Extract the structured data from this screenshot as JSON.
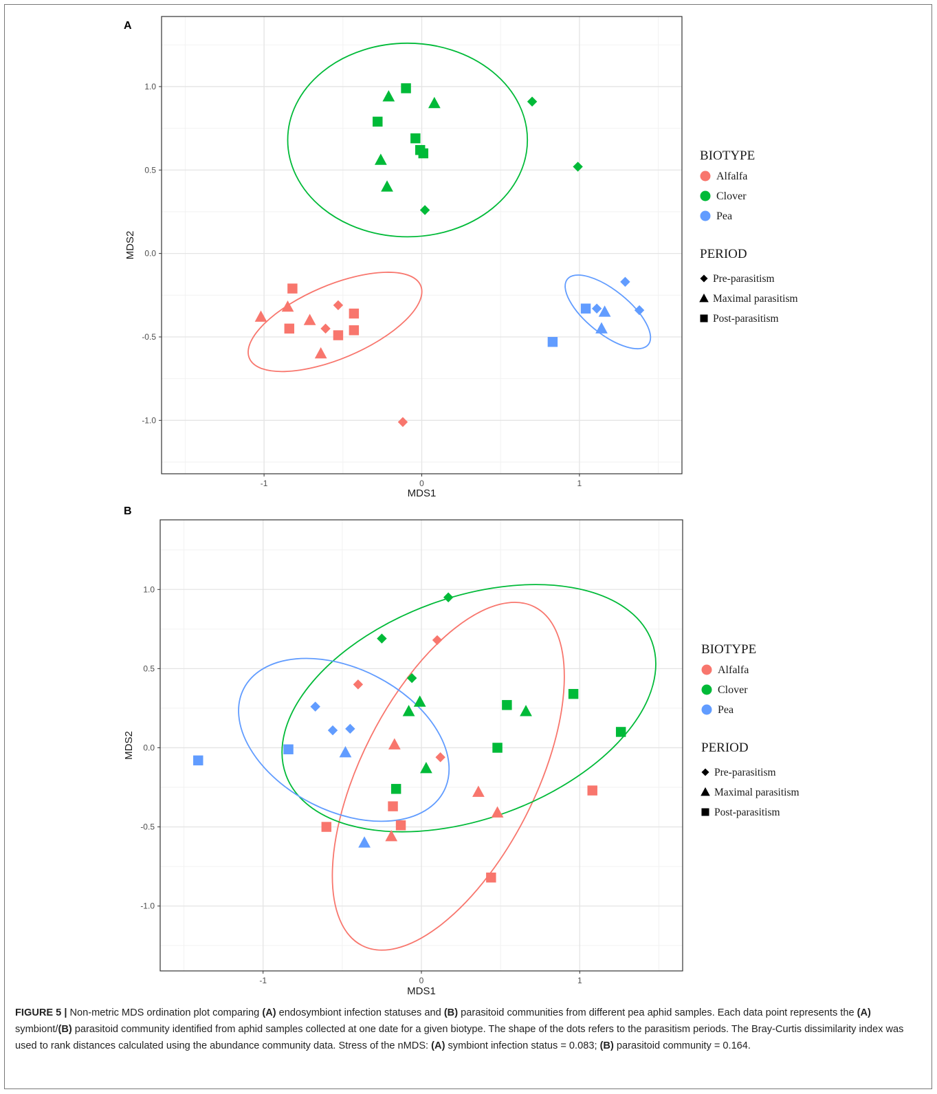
{
  "legend": {
    "biotype_title": "BIOTYPE",
    "biotypes": [
      {
        "name": "Alfalfa",
        "color": "#F8766D"
      },
      {
        "name": "Clover",
        "color": "#00BA38"
      },
      {
        "name": "Pea",
        "color": "#619CFF"
      }
    ],
    "period_title": "PERIOD",
    "periods": [
      {
        "name": "Pre-parasitism",
        "shape": "diamond"
      },
      {
        "name": "Maximal parasitism",
        "shape": "triangle"
      },
      {
        "name": "Post-parasitism",
        "shape": "square"
      }
    ]
  },
  "chart_data": [
    {
      "panel": "A",
      "type": "scatter",
      "xlabel": "MDS1",
      "ylabel": "MDS2",
      "xlim": [
        -1.65,
        1.65
      ],
      "ylim": [
        -1.32,
        1.42
      ],
      "xticks": [
        -1,
        0,
        1
      ],
      "yticks": [
        -1.0,
        -0.5,
        0.0,
        0.5,
        1.0
      ],
      "grid": true,
      "points": [
        {
          "biotype": "Alfalfa",
          "period": "Pre-parasitism",
          "x": -0.53,
          "y": -0.31
        },
        {
          "biotype": "Alfalfa",
          "period": "Pre-parasitism",
          "x": -0.61,
          "y": -0.45
        },
        {
          "biotype": "Alfalfa",
          "period": "Pre-parasitism",
          "x": -0.12,
          "y": -1.01
        },
        {
          "biotype": "Alfalfa",
          "period": "Maximal parasitism",
          "x": -1.02,
          "y": -0.38
        },
        {
          "biotype": "Alfalfa",
          "period": "Maximal parasitism",
          "x": -0.85,
          "y": -0.32
        },
        {
          "biotype": "Alfalfa",
          "period": "Maximal parasitism",
          "x": -0.71,
          "y": -0.4
        },
        {
          "biotype": "Alfalfa",
          "period": "Maximal parasitism",
          "x": -0.64,
          "y": -0.6
        },
        {
          "biotype": "Alfalfa",
          "period": "Post-parasitism",
          "x": -0.82,
          "y": -0.21
        },
        {
          "biotype": "Alfalfa",
          "period": "Post-parasitism",
          "x": -0.84,
          "y": -0.45
        },
        {
          "biotype": "Alfalfa",
          "period": "Post-parasitism",
          "x": -0.53,
          "y": -0.49
        },
        {
          "biotype": "Alfalfa",
          "period": "Post-parasitism",
          "x": -0.43,
          "y": -0.36
        },
        {
          "biotype": "Alfalfa",
          "period": "Post-parasitism",
          "x": -0.43,
          "y": -0.46
        },
        {
          "biotype": "Clover",
          "period": "Pre-parasitism",
          "x": 0.7,
          "y": 0.91
        },
        {
          "biotype": "Clover",
          "period": "Pre-parasitism",
          "x": 0.99,
          "y": 0.52
        },
        {
          "biotype": "Clover",
          "period": "Pre-parasitism",
          "x": 0.02,
          "y": 0.26
        },
        {
          "biotype": "Clover",
          "period": "Maximal parasitism",
          "x": -0.21,
          "y": 0.94
        },
        {
          "biotype": "Clover",
          "period": "Maximal parasitism",
          "x": 0.08,
          "y": 0.9
        },
        {
          "biotype": "Clover",
          "period": "Maximal parasitism",
          "x": -0.26,
          "y": 0.56
        },
        {
          "biotype": "Clover",
          "period": "Maximal parasitism",
          "x": -0.22,
          "y": 0.4
        },
        {
          "biotype": "Clover",
          "period": "Post-parasitism",
          "x": -0.1,
          "y": 0.99
        },
        {
          "biotype": "Clover",
          "period": "Post-parasitism",
          "x": -0.28,
          "y": 0.79
        },
        {
          "biotype": "Clover",
          "period": "Post-parasitism",
          "x": -0.04,
          "y": 0.69
        },
        {
          "biotype": "Clover",
          "period": "Post-parasitism",
          "x": -0.01,
          "y": 0.62
        },
        {
          "biotype": "Clover",
          "period": "Post-parasitism",
          "x": 0.01,
          "y": 0.6
        },
        {
          "biotype": "Pea",
          "period": "Pre-parasitism",
          "x": 1.29,
          "y": -0.17
        },
        {
          "biotype": "Pea",
          "period": "Pre-parasitism",
          "x": 1.11,
          "y": -0.33
        },
        {
          "biotype": "Pea",
          "period": "Pre-parasitism",
          "x": 1.38,
          "y": -0.34
        },
        {
          "biotype": "Pea",
          "period": "Maximal parasitism",
          "x": 1.16,
          "y": -0.35
        },
        {
          "biotype": "Pea",
          "period": "Maximal parasitism",
          "x": 1.14,
          "y": -0.45
        },
        {
          "biotype": "Pea",
          "period": "Post-parasitism",
          "x": 1.04,
          "y": -0.33
        },
        {
          "biotype": "Pea",
          "period": "Post-parasitism",
          "x": 0.83,
          "y": -0.53
        }
      ],
      "ellipses": [
        {
          "biotype": "Alfalfa",
          "cx": -0.55,
          "cy": -0.41,
          "rx": 0.59,
          "ry": 0.22,
          "angle_deg": -23
        },
        {
          "biotype": "Clover",
          "cx": -0.09,
          "cy": 0.68,
          "rx": 0.76,
          "ry": 0.58,
          "angle_deg": 0
        },
        {
          "biotype": "Pea",
          "cx": 1.18,
          "cy": -0.35,
          "rx": 0.33,
          "ry": 0.13,
          "angle_deg": 39
        }
      ]
    },
    {
      "panel": "B",
      "type": "scatter",
      "xlabel": "MDS1",
      "ylabel": "MDS2",
      "xlim": [
        -1.65,
        1.65
      ],
      "ylim": [
        -1.41,
        1.44
      ],
      "xticks": [
        -1,
        0,
        1
      ],
      "yticks": [
        -1.0,
        -0.5,
        0.0,
        0.5,
        1.0
      ],
      "grid": true,
      "points": [
        {
          "biotype": "Alfalfa",
          "period": "Pre-parasitism",
          "x": 0.1,
          "y": 0.68
        },
        {
          "biotype": "Alfalfa",
          "period": "Pre-parasitism",
          "x": -0.4,
          "y": 0.4
        },
        {
          "biotype": "Alfalfa",
          "period": "Pre-parasitism",
          "x": 0.12,
          "y": -0.06
        },
        {
          "biotype": "Alfalfa",
          "period": "Maximal parasitism",
          "x": -0.17,
          "y": 0.02
        },
        {
          "biotype": "Alfalfa",
          "period": "Maximal parasitism",
          "x": 0.36,
          "y": -0.28
        },
        {
          "biotype": "Alfalfa",
          "period": "Maximal parasitism",
          "x": 0.48,
          "y": -0.41
        },
        {
          "biotype": "Alfalfa",
          "period": "Maximal parasitism",
          "x": -0.19,
          "y": -0.56
        },
        {
          "biotype": "Alfalfa",
          "period": "Post-parasitism",
          "x": 1.08,
          "y": -0.27
        },
        {
          "biotype": "Alfalfa",
          "period": "Post-parasitism",
          "x": -0.6,
          "y": -0.5
        },
        {
          "biotype": "Alfalfa",
          "period": "Post-parasitism",
          "x": -0.18,
          "y": -0.37
        },
        {
          "biotype": "Alfalfa",
          "period": "Post-parasitism",
          "x": -0.13,
          "y": -0.49
        },
        {
          "biotype": "Alfalfa",
          "period": "Post-parasitism",
          "x": 0.44,
          "y": -0.82
        },
        {
          "biotype": "Clover",
          "period": "Pre-parasitism",
          "x": 0.17,
          "y": 0.95
        },
        {
          "biotype": "Clover",
          "period": "Pre-parasitism",
          "x": -0.25,
          "y": 0.69
        },
        {
          "biotype": "Clover",
          "period": "Pre-parasitism",
          "x": -0.06,
          "y": 0.44
        },
        {
          "biotype": "Clover",
          "period": "Maximal parasitism",
          "x": -0.01,
          "y": 0.29
        },
        {
          "biotype": "Clover",
          "period": "Maximal parasitism",
          "x": -0.08,
          "y": 0.23
        },
        {
          "biotype": "Clover",
          "period": "Maximal parasitism",
          "x": 0.66,
          "y": 0.23
        },
        {
          "biotype": "Clover",
          "period": "Maximal parasitism",
          "x": 0.03,
          "y": -0.13
        },
        {
          "biotype": "Clover",
          "period": "Post-parasitism",
          "x": 0.54,
          "y": 0.27
        },
        {
          "biotype": "Clover",
          "period": "Post-parasitism",
          "x": 0.96,
          "y": 0.34
        },
        {
          "biotype": "Clover",
          "period": "Post-parasitism",
          "x": 1.26,
          "y": 0.1
        },
        {
          "biotype": "Clover",
          "period": "Post-parasitism",
          "x": 0.48,
          "y": 0.0
        },
        {
          "biotype": "Clover",
          "period": "Post-parasitism",
          "x": -0.16,
          "y": -0.26
        },
        {
          "biotype": "Pea",
          "period": "Pre-parasitism",
          "x": -0.67,
          "y": 0.26
        },
        {
          "biotype": "Pea",
          "period": "Pre-parasitism",
          "x": -0.56,
          "y": 0.11
        },
        {
          "biotype": "Pea",
          "period": "Pre-parasitism",
          "x": -0.45,
          "y": 0.12
        },
        {
          "biotype": "Pea",
          "period": "Maximal parasitism",
          "x": -0.48,
          "y": -0.03
        },
        {
          "biotype": "Pea",
          "period": "Maximal parasitism",
          "x": -0.36,
          "y": -0.6
        },
        {
          "biotype": "Pea",
          "period": "Post-parasitism",
          "x": -1.41,
          "y": -0.08
        },
        {
          "biotype": "Pea",
          "period": "Post-parasitism",
          "x": -0.84,
          "y": -0.01
        }
      ],
      "ellipses": [
        {
          "biotype": "Alfalfa",
          "cx": 0.17,
          "cy": -0.18,
          "rx": 1.2,
          "ry": 0.55,
          "angle_deg": -63
        },
        {
          "biotype": "Clover",
          "cx": 0.3,
          "cy": 0.25,
          "rx": 1.23,
          "ry": 0.7,
          "angle_deg": -20
        },
        {
          "biotype": "Pea",
          "cx": -0.49,
          "cy": 0.05,
          "rx": 0.71,
          "ry": 0.45,
          "angle_deg": 27
        }
      ]
    }
  ],
  "caption": {
    "parts": [
      {
        "t": "FIGURE 5 |",
        "b": true
      },
      {
        "t": " Non-metric MDS ordination plot comparing ",
        "b": false
      },
      {
        "t": "(A)",
        "b": true
      },
      {
        "t": " endosymbiont infection statuses and ",
        "b": false
      },
      {
        "t": "(B)",
        "b": true
      },
      {
        "t": " parasitoid communities from different pea aphid samples. Each data point represents the ",
        "b": false
      },
      {
        "t": "(A)",
        "b": true
      },
      {
        "t": " symbiont/",
        "b": false
      },
      {
        "t": "(B)",
        "b": true
      },
      {
        "t": " parasitoid community identified from aphid samples collected at one date for a given biotype. The shape of the dots refers to the parasitism periods. The Bray-Curtis dissimilarity index was used to rank distances calculated using the abundance community data. Stress of the nMDS: ",
        "b": false
      },
      {
        "t": "(A)",
        "b": true
      },
      {
        "t": " symbiont infection status = 0.083; ",
        "b": false
      },
      {
        "t": "(B)",
        "b": true
      },
      {
        "t": " parasitoid community = 0.164.",
        "b": false
      }
    ]
  }
}
